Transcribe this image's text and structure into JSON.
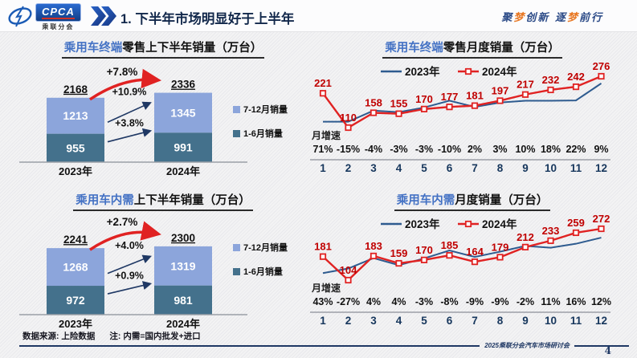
{
  "header": {
    "logo": {
      "acronym": "CPCA",
      "org": "乘联分会"
    },
    "title": "1. 下半年市场明显好于上半年",
    "slogan": [
      {
        "t": "聚",
        "c": "#2b4a87"
      },
      {
        "t": "梦",
        "c": "#e87722"
      },
      {
        "t": "创新 ",
        "c": "#2b4a87"
      },
      {
        "t": "逐",
        "c": "#2b4a87"
      },
      {
        "t": "梦",
        "c": "#e87722"
      },
      {
        "t": "前行",
        "c": "#2b4a87"
      }
    ]
  },
  "icons": {
    "logo_emblem": "cpca-emblem-icon",
    "header_chevrons": "double-chevron-right-icon"
  },
  "colors": {
    "accent_blue": "#4472c4",
    "navy": "#1f3864",
    "light_blue_bar": "#8ca5db",
    "dark_bar": "#44718c",
    "red": "#e02222",
    "red_label": "#c00000",
    "line_blue": "#2e5b8f",
    "month_tick": "#16365c"
  },
  "chart_data": [
    {
      "id": "retail-half-year",
      "type": "bar",
      "title_highlight": "乘用车终端",
      "title_rest": "零售上下半年销量（万台）",
      "categories": [
        "2023年",
        "2024年"
      ],
      "series": [
        {
          "name": "7-12月销量",
          "color": "#8ca5db",
          "values": [
            1213,
            1345
          ]
        },
        {
          "name": "1-6月销量",
          "color": "#44718c",
          "values": [
            955,
            991
          ]
        }
      ],
      "totals": [
        2168,
        2336
      ],
      "total_growth": "+7.8%",
      "upper_growth": "+10.9%",
      "lower_growth": "+3.8%"
    },
    {
      "id": "retail-monthly",
      "type": "line",
      "title_highlight": "乘用车终端",
      "title_rest": "零售月度销量（万台）",
      "x": [
        1,
        2,
        3,
        4,
        5,
        6,
        7,
        8,
        9,
        10,
        11,
        12
      ],
      "series": [
        {
          "name": "2023年",
          "color": "#2e5b8f",
          "estimated": true,
          "values": [
            129,
            129,
            165,
            160,
            175,
            197,
            177,
            191,
            197,
            197,
            198,
            253
          ]
        },
        {
          "name": "2024年",
          "color": "#e02222",
          "labeled": true,
          "values": [
            221,
            110,
            158,
            155,
            170,
            177,
            181,
            197,
            217,
            232,
            242,
            276
          ]
        }
      ],
      "growth_label": "月增速",
      "growth": [
        "71%",
        "-15%",
        "-4%",
        "-3%",
        "-3%",
        "-10%",
        "2%",
        "3%",
        "10%",
        "18%",
        "22%",
        "9%"
      ]
    },
    {
      "id": "domestic-half-year",
      "type": "bar",
      "title_highlight": "乘用车内需",
      "title_rest": "上下半年销量（万台）",
      "categories": [
        "2023年",
        "2024年"
      ],
      "series": [
        {
          "name": "7-12月销量",
          "color": "#8ca5db",
          "values": [
            1268,
            1319
          ]
        },
        {
          "name": "1-6月销量",
          "color": "#44718c",
          "values": [
            972,
            981
          ]
        }
      ],
      "totals": [
        2241,
        2300
      ],
      "total_growth": "+2.7%",
      "upper_growth": "+4.0%",
      "lower_growth": "+0.9%"
    },
    {
      "id": "domestic-monthly",
      "type": "line",
      "title_highlight": "乘用车内需",
      "title_rest": "月度销量（万台）",
      "x": [
        1,
        2,
        3,
        4,
        5,
        6,
        7,
        8,
        9,
        10,
        11,
        12
      ],
      "series": [
        {
          "name": "2023年",
          "color": "#2e5b8f",
          "estimated": true,
          "values": [
            127,
            142,
            176,
            153,
            175,
            201,
            180,
            197,
            216,
            210,
            223,
            243
          ]
        },
        {
          "name": "2024年",
          "color": "#e02222",
          "labeled": true,
          "values": [
            181,
            104,
            183,
            159,
            170,
            185,
            164,
            179,
            212,
            233,
            259,
            272
          ]
        }
      ],
      "growth_label": "月增速",
      "growth": [
        "43%",
        "-27%",
        "4%",
        "4%",
        "-3%",
        "-8%",
        "-9%",
        "-9%",
        "-2%",
        "11%",
        "16%",
        "12%"
      ]
    }
  ],
  "footnote": {
    "source": "数据来源: 上险数据",
    "note": "注: 内需=国内批发+进口"
  },
  "footer": {
    "conference": "2025乘联分会汽车市场研讨会",
    "page": "4"
  }
}
